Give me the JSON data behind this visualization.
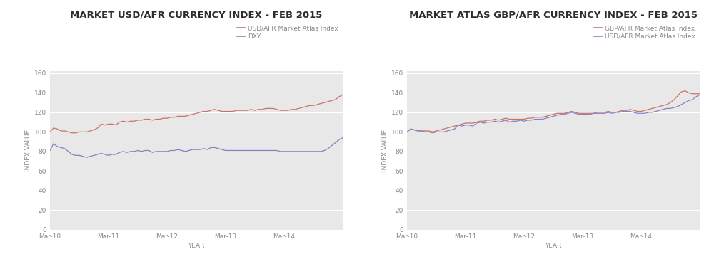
{
  "chart1_title": "MARKET USD/AFR CURRENCY INDEX - FEB 2015",
  "chart2_title": "MARKET ATLAS GBP/AFR CURRENCY INDEX - FEB 2015",
  "xlabel": "YEAR",
  "ylabel": "INDEX VALUE",
  "bg_color": "#e8e8e8",
  "fig_bg_color": "#ffffff",
  "grid_color": "#ffffff",
  "title_fontsize": 9.5,
  "label_fontsize": 6.5,
  "tick_fontsize": 6.5,
  "legend_fontsize": 6.5,
  "title_color": "#2d2d2d",
  "tick_color": "#888888",
  "label_color": "#888888",
  "xtick_labels": [
    "Mar-10",
    "Mar-11",
    "Mar-12",
    "Mar-13",
    "Mar-14"
  ],
  "yticks": [
    0,
    20,
    40,
    60,
    80,
    100,
    120,
    140,
    160
  ],
  "chart1_line1_color": "#c9736a",
  "chart1_line2_color": "#8a7fbf",
  "chart2_line1_color": "#c9736a",
  "chart2_line2_color": "#8a7fbf",
  "chart1_legend": [
    "USD/AFR Market Atlas Index",
    "DXY"
  ],
  "chart2_legend": [
    "GBP/AFR Market Atlas Index",
    "USD/AFR Market Atlas Index"
  ],
  "c1_l1_y": [
    100,
    104,
    103,
    101,
    101,
    100,
    99,
    99,
    100,
    100,
    100,
    101,
    102,
    104,
    108,
    107,
    108,
    108,
    107,
    110,
    111,
    110,
    111,
    111,
    112,
    112,
    113,
    113,
    112,
    113,
    113,
    114,
    114,
    115,
    115,
    116,
    116,
    116,
    117,
    118,
    119,
    120,
    121,
    121,
    122,
    123,
    122,
    121,
    121,
    121,
    121,
    122,
    122,
    122,
    122,
    123,
    122,
    123,
    123,
    124,
    124,
    124,
    123,
    122,
    122,
    122,
    123,
    123,
    124,
    125,
    126,
    127,
    127,
    128,
    129,
    130,
    131,
    132,
    133,
    136,
    138
  ],
  "c1_l2_y": [
    81,
    88,
    85,
    84,
    83,
    80,
    77,
    76,
    76,
    75,
    74,
    75,
    76,
    77,
    78,
    77,
    76,
    77,
    77,
    79,
    80,
    79,
    80,
    80,
    81,
    80,
    81,
    81,
    79,
    80,
    80,
    80,
    80,
    81,
    81,
    82,
    81,
    80,
    81,
    82,
    82,
    82,
    83,
    82,
    84,
    84,
    83,
    82,
    81,
    81,
    81,
    81,
    81,
    81,
    81,
    81,
    81,
    81,
    81,
    81,
    81,
    81,
    81,
    80,
    80,
    80,
    80,
    80,
    80,
    80,
    80,
    80,
    80,
    80,
    80,
    81,
    83,
    86,
    89,
    92,
    94
  ],
  "c2_l1_y": [
    100,
    103,
    102,
    101,
    101,
    101,
    101,
    100,
    101,
    102,
    103,
    104,
    105,
    106,
    107,
    108,
    109,
    109,
    109,
    110,
    111,
    111,
    112,
    112,
    113,
    112,
    113,
    114,
    113,
    113,
    113,
    113,
    113,
    114,
    114,
    115,
    115,
    115,
    116,
    117,
    118,
    119,
    119,
    119,
    120,
    121,
    120,
    119,
    119,
    119,
    119,
    119,
    120,
    120,
    120,
    121,
    120,
    120,
    121,
    122,
    122,
    123,
    122,
    121,
    121,
    122,
    123,
    124,
    125,
    126,
    127,
    128,
    130,
    133,
    137,
    141,
    142,
    140,
    139,
    139,
    139
  ],
  "c2_l2_y": [
    100,
    103,
    102,
    101,
    101,
    100,
    100,
    99,
    100,
    100,
    100,
    101,
    102,
    103,
    107,
    106,
    107,
    107,
    106,
    109,
    110,
    109,
    110,
    110,
    111,
    110,
    111,
    112,
    110,
    111,
    111,
    112,
    111,
    112,
    112,
    113,
    113,
    113,
    114,
    115,
    116,
    117,
    118,
    118,
    119,
    120,
    119,
    118,
    118,
    118,
    118,
    119,
    119,
    119,
    119,
    120,
    119,
    120,
    120,
    121,
    121,
    121,
    120,
    119,
    119,
    119,
    120,
    120,
    121,
    122,
    123,
    124,
    124,
    125,
    126,
    128,
    130,
    132,
    133,
    136,
    138
  ]
}
